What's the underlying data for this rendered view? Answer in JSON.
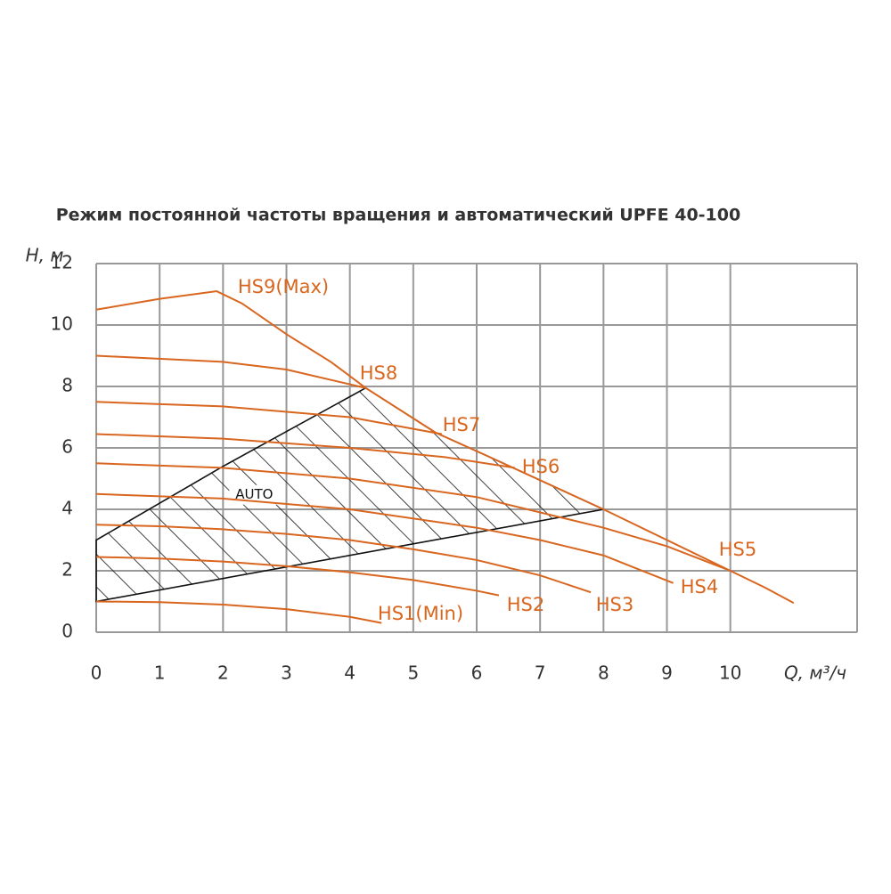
{
  "chart_data": {
    "type": "line",
    "title": "Режим постоянной частоты вращения и автоматический  UPFE 40-100",
    "y_label": "H, м",
    "x_label": "Q, м³/ч",
    "xlim": [
      0,
      12
    ],
    "xticks": [
      0,
      1,
      2,
      3,
      4,
      5,
      6,
      7,
      8,
      9,
      10
    ],
    "ylim": [
      0,
      12
    ],
    "yticks": [
      0,
      2,
      4,
      6,
      8,
      10,
      12
    ],
    "grid": true,
    "color": "#d9661f",
    "series": [
      {
        "name": "HS1(Min)",
        "x": [
          0,
          1,
          2,
          3,
          4,
          4.5
        ],
        "values": [
          1.0,
          0.98,
          0.9,
          0.75,
          0.5,
          0.3
        ]
      },
      {
        "name": "HS2",
        "x": [
          0,
          1,
          2,
          3,
          4,
          5,
          6,
          6.35
        ],
        "values": [
          2.45,
          2.4,
          2.3,
          2.15,
          1.95,
          1.7,
          1.35,
          1.2
        ]
      },
      {
        "name": "HS3",
        "x": [
          0,
          1,
          2,
          3,
          4,
          5,
          6,
          7,
          7.8
        ],
        "values": [
          3.5,
          3.45,
          3.35,
          3.2,
          3.0,
          2.7,
          2.35,
          1.85,
          1.3
        ]
      },
      {
        "name": "HS4",
        "x": [
          0,
          2,
          4,
          6,
          7,
          8,
          9.1
        ],
        "values": [
          4.5,
          4.35,
          4.0,
          3.4,
          3.0,
          2.5,
          1.6
        ]
      },
      {
        "name": "HS5",
        "x": [
          0,
          2,
          4,
          6,
          8,
          9,
          10
        ],
        "values": [
          5.5,
          5.35,
          5.0,
          4.4,
          3.4,
          2.8,
          2.0
        ]
      },
      {
        "name": "HS6",
        "x": [
          0,
          2,
          4,
          5.5,
          6.6
        ],
        "values": [
          6.45,
          6.3,
          6.0,
          5.7,
          5.35
        ]
      },
      {
        "name": "HS7",
        "x": [
          0,
          2,
          4,
          5.45
        ],
        "values": [
          7.5,
          7.35,
          7.0,
          6.45
        ]
      },
      {
        "name": "HS8",
        "x": [
          0,
          2,
          3,
          4.25
        ],
        "values": [
          9.0,
          8.8,
          8.55,
          7.95
        ]
      },
      {
        "name": "HS9(Max)",
        "x": [
          0,
          1,
          1.9,
          2.3,
          3,
          3.7,
          4.25,
          5.35,
          6.1,
          8,
          10,
          10.55,
          11
        ],
        "values": [
          10.5,
          10.85,
          11.1,
          10.7,
          9.7,
          8.8,
          7.95,
          6.5,
          5.8,
          4.0,
          2.0,
          1.45,
          0.95
        ]
      }
    ],
    "auto_region": {
      "label": "AUTO",
      "x": [
        0,
        0,
        2,
        4.25,
        5.35,
        6.1,
        8
      ],
      "values": [
        1.0,
        3.0,
        5.4,
        7.95,
        6.5,
        5.8,
        4.0
      ]
    }
  }
}
